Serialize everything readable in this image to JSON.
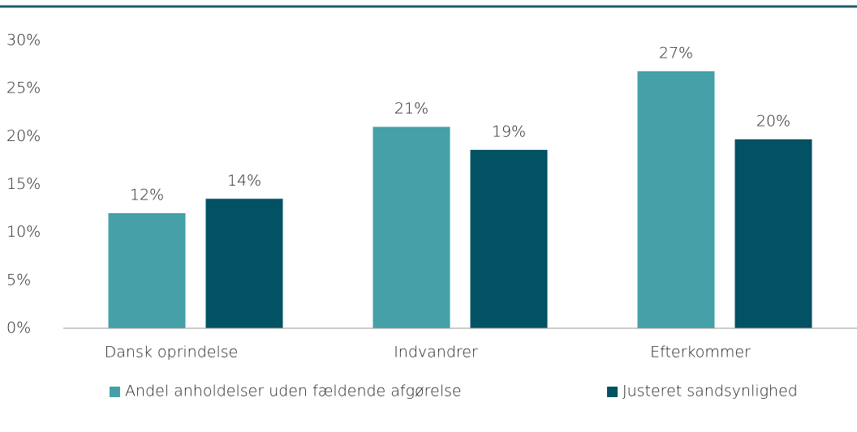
{
  "chart_data": {
    "type": "bar",
    "categories": [
      "Dansk oprindelse",
      "Indvandrer",
      "Efterkommer"
    ],
    "series": [
      {
        "name": "Andel anholdelser uden fældende afgørelse",
        "color": "#45a0a7",
        "values": [
          12,
          21,
          26.8
        ],
        "value_labels": [
          "12%",
          "21%",
          "27%"
        ]
      },
      {
        "name": "Justeret sandsynlighed",
        "color": "#025263",
        "values": [
          13.5,
          18.6,
          19.7
        ],
        "value_labels": [
          "14%",
          "19%",
          "20%"
        ]
      }
    ],
    "ylim": [
      0,
      30
    ],
    "yticks": [
      {
        "value": 0,
        "label": "0%"
      },
      {
        "value": 5,
        "label": "5%"
      },
      {
        "value": 10,
        "label": "10%"
      },
      {
        "value": 15,
        "label": "15%"
      },
      {
        "value": 20,
        "label": "20%"
      },
      {
        "value": 25,
        "label": "25%"
      },
      {
        "value": 30,
        "label": "30%"
      }
    ],
    "grid": false,
    "legend": "bottom"
  }
}
